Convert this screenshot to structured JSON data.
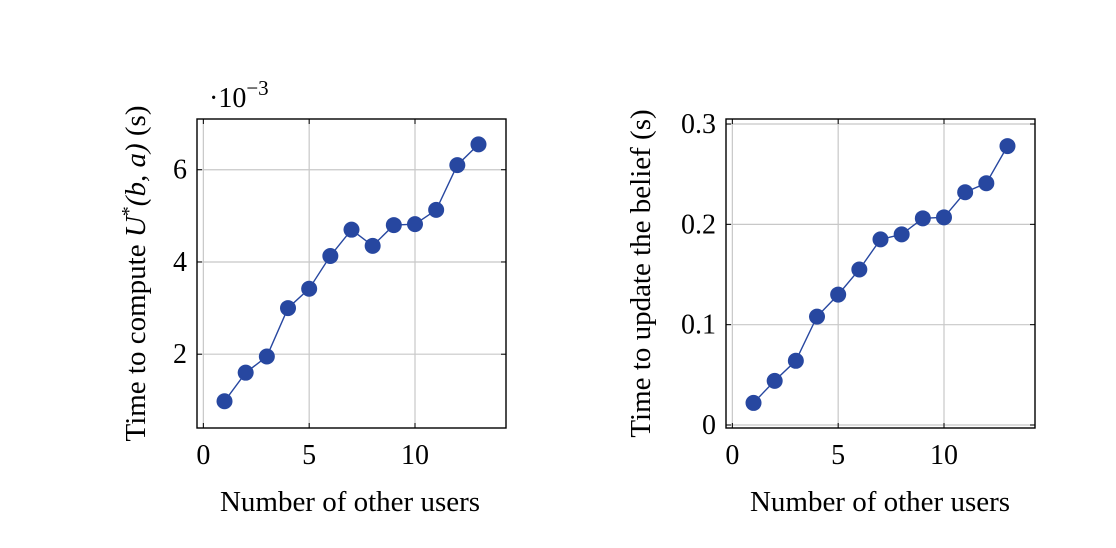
{
  "chart_data": [
    {
      "type": "line",
      "xlabel": "Number of other users",
      "ylabel": "Time to compute U*(b, a) (s)",
      "ylabel_parts": {
        "pre": "Time to compute ",
        "func": "U",
        "sup": "*",
        "args": "(b, a)",
        "post": " (s)"
      },
      "y_multiplier": "·10^-3",
      "y_multiplier_parts": {
        "base": "·10",
        "exp": "−3"
      },
      "xlim": [
        -0.3,
        14.3
      ],
      "ylim": [
        0.4,
        7.1
      ],
      "xticks": [
        0,
        5,
        10
      ],
      "yticks": [
        2,
        4,
        6
      ],
      "xtick_labels": [
        "0",
        "5",
        "10"
      ],
      "ytick_labels": [
        "2",
        "4",
        "6"
      ],
      "grid": true,
      "series": [
        {
          "color": "#2747a0",
          "x": [
            1,
            2,
            3,
            4,
            5,
            6,
            7,
            8,
            9,
            10,
            11,
            12,
            13
          ],
          "y": [
            0.98,
            1.6,
            1.95,
            3.0,
            3.42,
            4.13,
            4.7,
            4.35,
            4.8,
            4.82,
            5.13,
            6.1,
            6.55
          ]
        }
      ]
    },
    {
      "type": "line",
      "xlabel": "Number of other users",
      "ylabel": "Time to update the belief (s)",
      "xlim": [
        -0.3,
        14.3
      ],
      "ylim": [
        -0.003,
        0.305
      ],
      "xticks": [
        0,
        5,
        10
      ],
      "yticks": [
        0,
        0.1,
        0.2,
        0.3
      ],
      "xtick_labels": [
        "0",
        "5",
        "10"
      ],
      "ytick_labels": [
        "0",
        "0.1",
        "0.2",
        "0.3"
      ],
      "grid": true,
      "series": [
        {
          "color": "#2747a0",
          "x": [
            1,
            2,
            3,
            4,
            5,
            6,
            7,
            8,
            9,
            10,
            11,
            12,
            13
          ],
          "y": [
            0.022,
            0.044,
            0.064,
            0.108,
            0.13,
            0.155,
            0.185,
            0.19,
            0.206,
            0.207,
            0.232,
            0.241,
            0.278
          ]
        }
      ]
    }
  ]
}
